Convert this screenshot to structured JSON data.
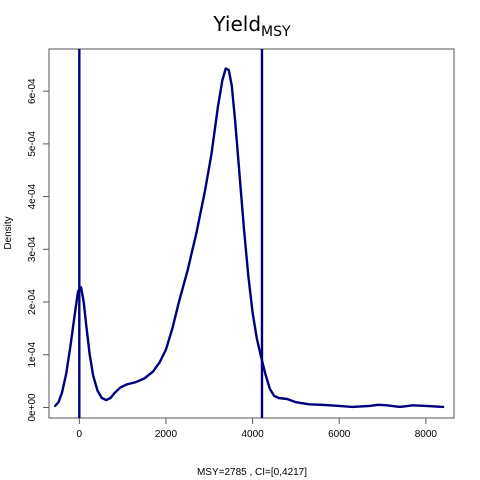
{
  "chart_data": {
    "type": "line",
    "title": {
      "main": "Yield",
      "subscript": "MSY"
    },
    "xlabel": "MSY=2785 , CI=[0,4217]",
    "ylabel": "Density",
    "xlim": [
      -700,
      8650
    ],
    "ylim": [
      -2e-05,
      0.00068
    ],
    "x_ticks": [
      0,
      2000,
      4000,
      6000,
      8000
    ],
    "x_tick_labels": [
      "0",
      "2000",
      "4000",
      "6000",
      "8000"
    ],
    "y_ticks": [
      0,
      0.0001,
      0.0002,
      0.0003,
      0.0004,
      0.0005,
      0.0006
    ],
    "y_tick_labels": [
      "0e+00",
      "1e-04",
      "2e-04",
      "3e-04",
      "4e-04",
      "5e-04",
      "6e-04"
    ],
    "grid": false,
    "line_color": "#00007f",
    "vlines": [
      0,
      4217
    ],
    "series": [
      {
        "x": [
          -560,
          -480,
          -400,
          -300,
          -200,
          -100,
          -30,
          40,
          100,
          160,
          240,
          320,
          420,
          520,
          620,
          720,
          820,
          950,
          1100,
          1300,
          1500,
          1700,
          1850,
          2000,
          2150,
          2300,
          2500,
          2700,
          2900,
          3050,
          3200,
          3300,
          3380,
          3450,
          3520,
          3600,
          3700,
          3800,
          3900,
          4000,
          4100,
          4200,
          4300,
          4400,
          4500,
          4600,
          4800,
          5000,
          5300,
          5600,
          6000,
          6300,
          6700,
          6900,
          7100,
          7400,
          7700,
          8000,
          8200,
          8400
        ],
        "y": [
          3e-06,
          1e-05,
          2.8e-05,
          6.5e-05,
          0.00012,
          0.00018,
          0.00022,
          0.000228,
          0.0002,
          0.000155,
          0.0001,
          6e-05,
          3.2e-05,
          1.8e-05,
          1.4e-05,
          1.8e-05,
          2.8e-05,
          3.8e-05,
          4.4e-05,
          4.8e-05,
          5.5e-05,
          6.8e-05,
          8.5e-05,
          0.00011,
          0.00015,
          0.0002,
          0.00026,
          0.00033,
          0.00041,
          0.00048,
          0.00057,
          0.00062,
          0.000643,
          0.00064,
          0.00061,
          0.00054,
          0.00044,
          0.00034,
          0.00025,
          0.00018,
          0.00013,
          9.5e-05,
          6.2e-05,
          3.5e-05,
          2.2e-05,
          1.8e-05,
          1.6e-05,
          1e-05,
          6e-06,
          5e-06,
          3e-06,
          1e-06,
          3e-06,
          5e-06,
          4e-06,
          1e-06,
          4e-06,
          3e-06,
          2e-06,
          1e-06
        ]
      }
    ]
  }
}
